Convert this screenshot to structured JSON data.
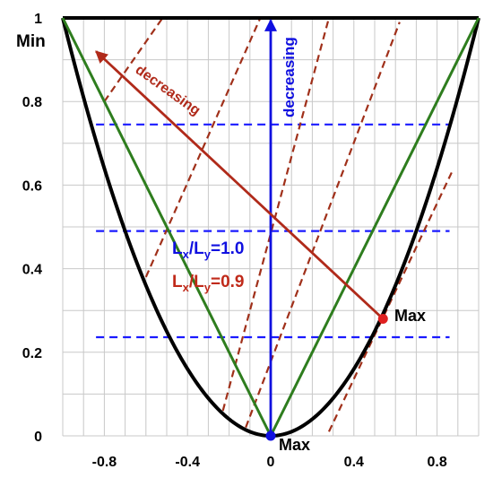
{
  "chart_data": {
    "type": "line",
    "xlim": [
      -1,
      1
    ],
    "ylim": [
      0,
      1
    ],
    "x_ticks": [
      {
        "value": -0.8,
        "label": "-0.8"
      },
      {
        "value": -0.4,
        "label": "-0.4"
      },
      {
        "value": 0,
        "label": "0"
      },
      {
        "value": 0.4,
        "label": "0.4"
      },
      {
        "value": 0.8,
        "label": "0.8"
      }
    ],
    "y_ticks": [
      {
        "value": 0,
        "label": "0"
      },
      {
        "value": 0.2,
        "label": "0.2"
      },
      {
        "value": 0.4,
        "label": "0.4"
      },
      {
        "value": 0.6,
        "label": "0.6"
      },
      {
        "value": 0.8,
        "label": "0.8"
      },
      {
        "value": 1,
        "label": "1"
      }
    ],
    "grid": true,
    "curves": [
      {
        "id": "parabola",
        "color": "#000000",
        "style": "solid",
        "equation": "y = x^2",
        "x_range": [
          -1,
          1
        ]
      },
      {
        "id": "top-line",
        "color": "#000000",
        "style": "solid",
        "points": [
          [
            -1,
            1
          ],
          [
            1,
            1
          ]
        ]
      },
      {
        "id": "green-left",
        "color": "#2e7d1e",
        "style": "solid",
        "points": [
          [
            -1,
            1
          ],
          [
            0,
            0
          ]
        ]
      },
      {
        "id": "green-right",
        "color": "#2e7d1e",
        "style": "solid",
        "points": [
          [
            0,
            0
          ],
          [
            1,
            1
          ]
        ]
      }
    ],
    "level_lines_blue": {
      "color": "#1a1aff",
      "style": "dashed",
      "y_values": [
        0.236,
        0.49,
        0.745
      ],
      "x_range": [
        -0.84,
        0.86
      ]
    },
    "level_lines_red": {
      "color": "#a0301a",
      "style": "dashed",
      "slope": 2.8,
      "segments": [
        [
          [
            -0.8,
            0.8
          ],
          [
            -0.52,
            1.0
          ]
        ],
        [
          [
            -0.6,
            0.38
          ],
          [
            -0.05,
            1.0
          ]
        ],
        [
          [
            -0.23,
            0.06
          ],
          [
            0.28,
            1.0
          ]
        ],
        [
          [
            -0.12,
            0.02
          ],
          [
            0.62,
            0.99
          ]
        ],
        [
          [
            0.28,
            0.01
          ],
          [
            0.87,
            0.63
          ]
        ]
      ]
    },
    "arrows": [
      {
        "id": "blue-arrow",
        "color": "#1010e0",
        "from": [
          0,
          0
        ],
        "to": [
          0,
          0.995
        ],
        "label": "decreasing"
      },
      {
        "id": "red-arrow",
        "color": "#b02a1a",
        "from": [
          0.54,
          0.28
        ],
        "to": [
          -0.84,
          0.92
        ],
        "label": "decreasing"
      }
    ],
    "points": [
      {
        "id": "max-blue",
        "x": 0,
        "y": 0,
        "color": "#1010e0",
        "label": "Max"
      },
      {
        "id": "max-red",
        "x": 0.54,
        "y": 0.28,
        "color": "#e02020",
        "label": "Max"
      }
    ],
    "annotations": {
      "min_label": "Min",
      "blue_arrow_label": "decreasing",
      "red_arrow_label": "decreasing",
      "ratio_blue": {
        "base": "L",
        "sub1": "x",
        "slash": "/L",
        "sub2": "y",
        "tail": "=1.0",
        "color": "#1010e0"
      },
      "ratio_red": {
        "base": "L",
        "sub1": "x",
        "slash": "/L",
        "sub2": "y",
        "tail": "=0.9",
        "color": "#c02a1a"
      }
    }
  }
}
